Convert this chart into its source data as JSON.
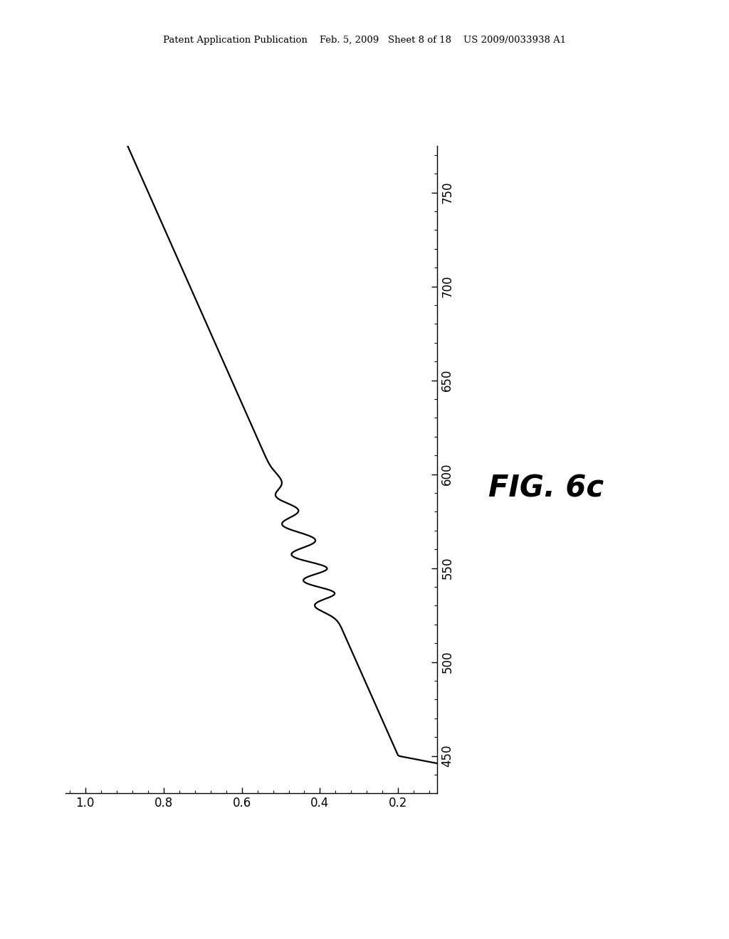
{
  "x_ticks": [
    1,
    0.8,
    0.6,
    0.4,
    0.2
  ],
  "y_ticks": [
    450,
    500,
    550,
    600,
    650,
    700,
    750
  ],
  "xlim": [
    1.05,
    0.1
  ],
  "ylim": [
    430,
    775
  ],
  "fig_label": "FIG. 6c",
  "background_color": "#ffffff",
  "line_color": "#000000",
  "line_width": 1.6,
  "header_text": "Patent Application Publication    Feb. 5, 2009   Sheet 8 of 18    US 2009/0033938 A1",
  "header_fontsize": 9.5,
  "tick_labelsize": 12,
  "fig_label_fontsize": 30
}
